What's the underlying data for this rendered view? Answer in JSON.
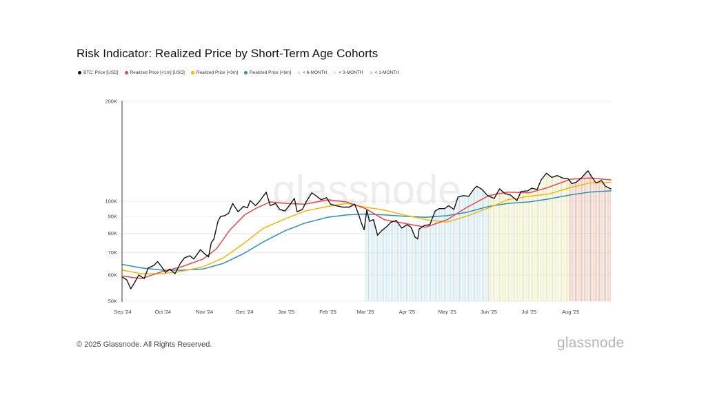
{
  "title": "Risk Indicator: Realized Price by Short-Term Age Cohorts",
  "legend": [
    {
      "label": "BTC: Price [USD]",
      "color": "#111111"
    },
    {
      "label": "Realized Price [<1m] [USD]",
      "color": "#ef4444"
    },
    {
      "label": "Realized Price [<3m]",
      "color": "#f5b800"
    },
    {
      "label": "Realized Price [<6m]",
      "color": "#2a8fb8"
    },
    {
      "label": "< 6-MONTH",
      "color": "#dbe9f2"
    },
    {
      "label": "< 3-MONTH",
      "color": "#efeec0"
    },
    {
      "label": "< 1-MONTH",
      "color": "#f6d3cc"
    }
  ],
  "watermark": "glassnode",
  "footer": {
    "copyright": "© 2025 Glassnode. All Rights Reserved.",
    "logo": "glassnode"
  },
  "chart_data": {
    "type": "line",
    "title": "Risk Indicator: Realized Price by Short-Term Age Cohorts",
    "y_scale": "log",
    "ylim": [
      50000,
      200000
    ],
    "y_ticks": [
      {
        "value": 200000,
        "label": "200K"
      },
      {
        "value": 100000,
        "label": "100K"
      },
      {
        "value": 90000,
        "label": "90K"
      },
      {
        "value": 80000,
        "label": "80K"
      },
      {
        "value": 70000,
        "label": "70K"
      },
      {
        "value": 60000,
        "label": "60K"
      },
      {
        "value": 50000,
        "label": "50K"
      }
    ],
    "x_ticks": [
      "Sep '24",
      "Oct '24",
      "Nov '24",
      "Dec '24",
      "Jan '25",
      "Feb '25",
      "Mar '25",
      "Apr '25",
      "May '25",
      "Jun '25",
      "Jul '25",
      "Aug '25"
    ],
    "x_range": [
      "2024-09-01",
      "2025-08-31"
    ],
    "grid": true,
    "legend_position": "top-left",
    "series": [
      {
        "name": "BTC: Price [USD]",
        "color": "#111111",
        "points": [
          [
            "2024-09-01",
            59000
          ],
          [
            "2024-09-04",
            58000
          ],
          [
            "2024-09-07",
            54500
          ],
          [
            "2024-09-10",
            57000
          ],
          [
            "2024-09-13",
            60000
          ],
          [
            "2024-09-17",
            58500
          ],
          [
            "2024-09-20",
            63000
          ],
          [
            "2024-09-24",
            64000
          ],
          [
            "2024-09-27",
            65800
          ],
          [
            "2024-09-30",
            63500
          ],
          [
            "2024-10-03",
            61000
          ],
          [
            "2024-10-06",
            62500
          ],
          [
            "2024-10-10",
            60500
          ],
          [
            "2024-10-14",
            65000
          ],
          [
            "2024-10-17",
            67500
          ],
          [
            "2024-10-21",
            68500
          ],
          [
            "2024-10-24",
            67000
          ],
          [
            "2024-10-29",
            71500
          ],
          [
            "2024-11-01",
            69500
          ],
          [
            "2024-11-04",
            68000
          ],
          [
            "2024-11-06",
            75000
          ],
          [
            "2024-11-08",
            77000
          ],
          [
            "2024-11-11",
            87000
          ],
          [
            "2024-11-13",
            90000
          ],
          [
            "2024-11-16",
            90500
          ],
          [
            "2024-11-19",
            92000
          ],
          [
            "2024-11-22",
            98500
          ],
          [
            "2024-11-26",
            93000
          ],
          [
            "2024-11-30",
            96500
          ],
          [
            "2024-12-03",
            95500
          ],
          [
            "2024-12-05",
            100500
          ],
          [
            "2024-12-09",
            97000
          ],
          [
            "2024-12-12",
            100000
          ],
          [
            "2024-12-17",
            106500
          ],
          [
            "2024-12-20",
            97000
          ],
          [
            "2024-12-24",
            98500
          ],
          [
            "2024-12-27",
            94500
          ],
          [
            "2024-12-31",
            93500
          ],
          [
            "2025-01-04",
            98000
          ],
          [
            "2025-01-07",
            102000
          ],
          [
            "2025-01-09",
            93000
          ],
          [
            "2025-01-13",
            94500
          ],
          [
            "2025-01-16",
            100000
          ],
          [
            "2025-01-20",
            106000
          ],
          [
            "2025-01-23",
            104000
          ],
          [
            "2025-01-27",
            101000
          ],
          [
            "2025-01-31",
            102500
          ],
          [
            "2025-02-03",
            98000
          ],
          [
            "2025-02-07",
            97000
          ],
          [
            "2025-02-12",
            96000
          ],
          [
            "2025-02-17",
            96000
          ],
          [
            "2025-02-21",
            98000
          ],
          [
            "2025-02-24",
            91000
          ],
          [
            "2025-02-26",
            86000
          ],
          [
            "2025-02-28",
            82000
          ],
          [
            "2025-03-02",
            94000
          ],
          [
            "2025-03-04",
            87000
          ],
          [
            "2025-03-07",
            88000
          ],
          [
            "2025-03-10",
            79000
          ],
          [
            "2025-03-13",
            81500
          ],
          [
            "2025-03-17",
            84000
          ],
          [
            "2025-03-20",
            86500
          ],
          [
            "2025-03-24",
            87500
          ],
          [
            "2025-03-28",
            83000
          ],
          [
            "2025-04-01",
            85000
          ],
          [
            "2025-04-04",
            83500
          ],
          [
            "2025-04-07",
            78000
          ],
          [
            "2025-04-09",
            77000
          ],
          [
            "2025-04-10",
            82500
          ],
          [
            "2025-04-14",
            84500
          ],
          [
            "2025-04-18",
            85000
          ],
          [
            "2025-04-22",
            93500
          ],
          [
            "2025-04-25",
            95000
          ],
          [
            "2025-04-29",
            95000
          ],
          [
            "2025-05-02",
            97000
          ],
          [
            "2025-05-06",
            94500
          ],
          [
            "2025-05-09",
            103000
          ],
          [
            "2025-05-13",
            104000
          ],
          [
            "2025-05-17",
            103500
          ],
          [
            "2025-05-21",
            109000
          ],
          [
            "2025-05-23",
            111000
          ],
          [
            "2025-05-27",
            108500
          ],
          [
            "2025-05-31",
            104000
          ],
          [
            "2025-06-05",
            102000
          ],
          [
            "2025-06-09",
            109000
          ],
          [
            "2025-06-13",
            105500
          ],
          [
            "2025-06-17",
            104500
          ],
          [
            "2025-06-22",
            100500
          ],
          [
            "2025-06-25",
            107000
          ],
          [
            "2025-06-30",
            107500
          ],
          [
            "2025-07-03",
            109500
          ],
          [
            "2025-07-07",
            108500
          ],
          [
            "2025-07-10",
            116000
          ],
          [
            "2025-07-14",
            121500
          ],
          [
            "2025-07-18",
            118000
          ],
          [
            "2025-07-22",
            119500
          ],
          [
            "2025-07-26",
            117500
          ],
          [
            "2025-07-30",
            117000
          ],
          [
            "2025-08-02",
            113000
          ],
          [
            "2025-08-05",
            114000
          ],
          [
            "2025-08-09",
            117500
          ],
          [
            "2025-08-13",
            122500
          ],
          [
            "2025-08-14",
            123500
          ],
          [
            "2025-08-17",
            118000
          ],
          [
            "2025-08-20",
            113500
          ],
          [
            "2025-08-24",
            115500
          ],
          [
            "2025-08-27",
            111000
          ],
          [
            "2025-08-31",
            109000
          ]
        ]
      },
      {
        "name": "Realized Price [<1m] [USD]",
        "color": "#ef4444",
        "points": [
          [
            "2024-09-01",
            59500
          ],
          [
            "2024-09-15",
            58500
          ],
          [
            "2024-10-01",
            61500
          ],
          [
            "2024-10-15",
            63500
          ],
          [
            "2024-10-31",
            67000
          ],
          [
            "2024-11-10",
            72000
          ],
          [
            "2024-11-20",
            82000
          ],
          [
            "2024-12-01",
            91000
          ],
          [
            "2024-12-10",
            95500
          ],
          [
            "2024-12-20",
            99500
          ],
          [
            "2025-01-01",
            98500
          ],
          [
            "2025-01-15",
            98000
          ],
          [
            "2025-02-01",
            101000
          ],
          [
            "2025-02-15",
            99500
          ],
          [
            "2025-03-01",
            95000
          ],
          [
            "2025-03-15",
            88000
          ],
          [
            "2025-04-01",
            85500
          ],
          [
            "2025-04-15",
            83500
          ],
          [
            "2025-05-01",
            88000
          ],
          [
            "2025-05-15",
            95500
          ],
          [
            "2025-06-01",
            104000
          ],
          [
            "2025-06-15",
            106500
          ],
          [
            "2025-07-01",
            106000
          ],
          [
            "2025-07-15",
            110000
          ],
          [
            "2025-08-01",
            116500
          ],
          [
            "2025-08-15",
            117500
          ],
          [
            "2025-08-31",
            116000
          ]
        ]
      },
      {
        "name": "Realized Price [<3m]",
        "color": "#f5b800",
        "points": [
          [
            "2024-09-01",
            62000
          ],
          [
            "2024-09-15",
            60500
          ],
          [
            "2024-10-01",
            60500
          ],
          [
            "2024-10-15",
            61500
          ],
          [
            "2024-10-31",
            63500
          ],
          [
            "2024-11-15",
            67500
          ],
          [
            "2024-11-30",
            74500
          ],
          [
            "2024-12-15",
            83000
          ],
          [
            "2024-12-31",
            88500
          ],
          [
            "2025-01-15",
            93500
          ],
          [
            "2025-02-01",
            96500
          ],
          [
            "2025-02-15",
            98500
          ],
          [
            "2025-03-01",
            96000
          ],
          [
            "2025-03-15",
            94000
          ],
          [
            "2025-04-01",
            90500
          ],
          [
            "2025-04-15",
            88000
          ],
          [
            "2025-05-01",
            86500
          ],
          [
            "2025-05-15",
            90000
          ],
          [
            "2025-06-01",
            95500
          ],
          [
            "2025-06-15",
            101000
          ],
          [
            "2025-07-01",
            103500
          ],
          [
            "2025-07-15",
            105000
          ],
          [
            "2025-08-01",
            110000
          ],
          [
            "2025-08-15",
            113500
          ],
          [
            "2025-08-31",
            114000
          ]
        ]
      },
      {
        "name": "Realized Price [<6m]",
        "color": "#2a8fb8",
        "points": [
          [
            "2024-09-01",
            64500
          ],
          [
            "2024-09-15",
            63000
          ],
          [
            "2024-10-01",
            62000
          ],
          [
            "2024-10-15",
            62000
          ],
          [
            "2024-10-31",
            62500
          ],
          [
            "2024-11-15",
            65000
          ],
          [
            "2024-11-30",
            69500
          ],
          [
            "2024-12-15",
            75500
          ],
          [
            "2024-12-31",
            81500
          ],
          [
            "2025-01-15",
            86000
          ],
          [
            "2025-02-01",
            89500
          ],
          [
            "2025-02-15",
            91000
          ],
          [
            "2025-03-01",
            91500
          ],
          [
            "2025-03-15",
            91000
          ],
          [
            "2025-04-01",
            90000
          ],
          [
            "2025-04-15",
            89500
          ],
          [
            "2025-05-01",
            90500
          ],
          [
            "2025-05-15",
            92500
          ],
          [
            "2025-06-01",
            96500
          ],
          [
            "2025-06-15",
            98500
          ],
          [
            "2025-07-01",
            99500
          ],
          [
            "2025-07-15",
            101500
          ],
          [
            "2025-08-01",
            104500
          ],
          [
            "2025-08-15",
            106500
          ],
          [
            "2025-08-31",
            107500
          ]
        ]
      }
    ],
    "risk_bands": [
      {
        "name": "< 6-MONTH",
        "color": "#b9d9ee",
        "from": "2025-03-01",
        "to": "2025-06-01"
      },
      {
        "name": "< 3-MONTH",
        "color": "#e5e3a4",
        "from": "2025-06-01",
        "to": "2025-07-31"
      },
      {
        "name": "< 1-MONTH",
        "color": "#f0a48f",
        "from": "2025-07-31",
        "to": "2025-08-31"
      }
    ]
  }
}
